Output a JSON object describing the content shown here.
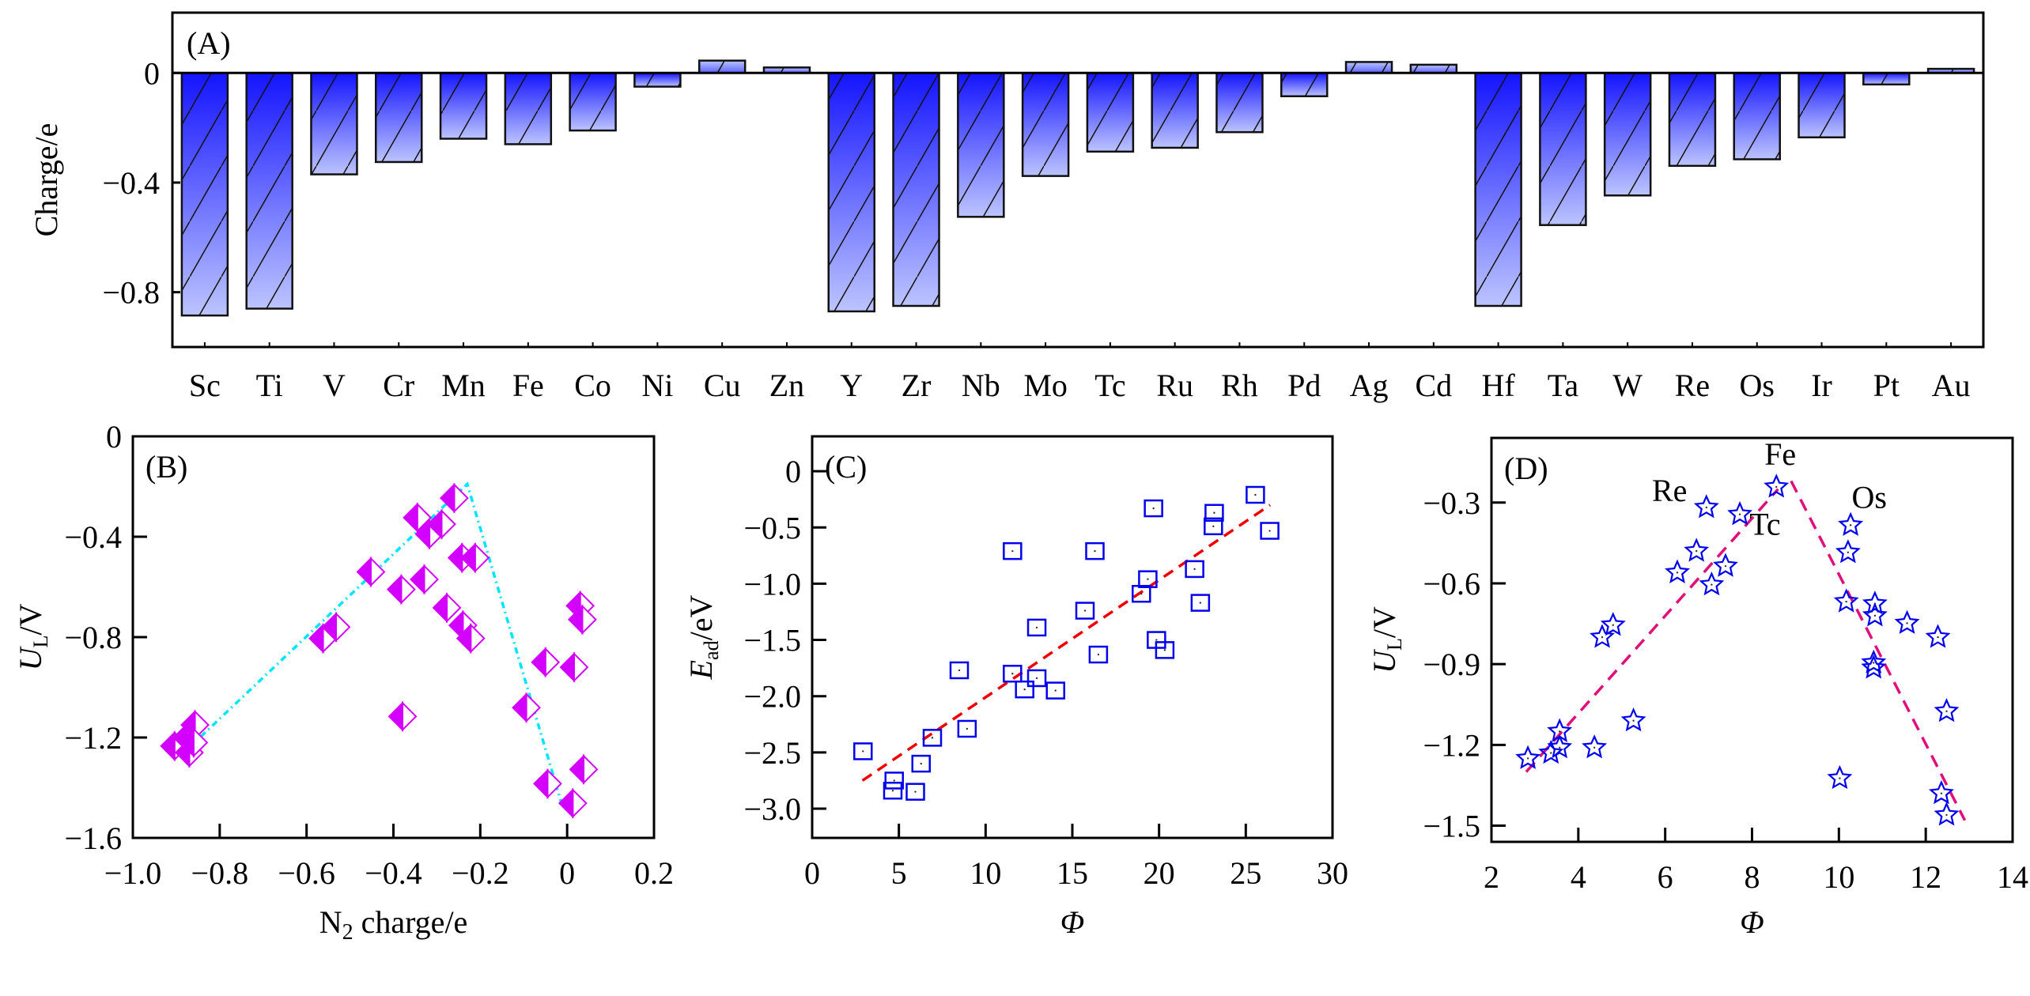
{
  "colors": {
    "bar_top": "#1414ff",
    "bar_bottom": "#bcc4ff",
    "diamond": "#d400ff",
    "fit_b": "#00e5ff",
    "square": "#0000ee",
    "fit_c": "#ee0000",
    "star": "#0000ee",
    "fit_d": "#e0107a"
  },
  "chart_data": [
    {
      "panel": "(A)",
      "type": "bar",
      "ylabel": "Charge/e",
      "xlabel": "",
      "ylim": [
        -1.0,
        0.22
      ],
      "yticks": [
        0,
        -0.4,
        -0.8
      ],
      "ytick_labels": [
        "0",
        "−0.4",
        "−0.8"
      ],
      "categories": [
        "Sc",
        "Ti",
        "V",
        "Cr",
        "Mn",
        "Fe",
        "Co",
        "Ni",
        "Cu",
        "Zn",
        "Y",
        "Zr",
        "Nb",
        "Mo",
        "Tc",
        "Ru",
        "Rh",
        "Pd",
        "Ag",
        "Cd",
        "Hf",
        "Ta",
        "W",
        "Re",
        "Os",
        "Ir",
        "Pt",
        "Au"
      ],
      "values": [
        -0.885,
        -0.86,
        -0.37,
        -0.325,
        -0.24,
        -0.26,
        -0.21,
        -0.05,
        0.045,
        0.02,
        -0.87,
        -0.85,
        -0.525,
        -0.376,
        -0.287,
        -0.273,
        -0.216,
        -0.085,
        0.04,
        0.03,
        -0.85,
        -0.555,
        -0.447,
        -0.339,
        -0.315,
        -0.235,
        -0.042,
        0.015
      ]
    },
    {
      "panel": "(B)",
      "type": "scatter",
      "ylabel_main": "U",
      "ylabel_sub": "L",
      "ylabel_tail": "/V",
      "xlabel_main": "N",
      "xlabel_sub": "2",
      "xlabel_tail": " charge/e",
      "xlim": [
        -1.0,
        0.2
      ],
      "ylim": [
        -1.6,
        0
      ],
      "xticks": [
        -1.0,
        -0.8,
        -0.6,
        -0.4,
        -0.2,
        0,
        0.2
      ],
      "xtick_labels": [
        "−1.0",
        "−0.8",
        "−0.6",
        "−0.4",
        "−0.2",
        "0",
        "0.2"
      ],
      "yticks": [
        0,
        -0.4,
        -0.8,
        -1.2,
        -1.6
      ],
      "ytick_labels": [
        "0",
        "−0.4",
        "−0.8",
        "−1.2",
        "−1.6"
      ],
      "x": [
        -0.904,
        -0.875,
        -0.87,
        -0.857,
        -0.86,
        -0.562,
        -0.532,
        -0.452,
        -0.382,
        -0.379,
        -0.345,
        -0.329,
        -0.317,
        -0.289,
        -0.277,
        -0.26,
        -0.242,
        -0.24,
        -0.212,
        -0.222,
        -0.094,
        -0.05,
        -0.045,
        0.013,
        0.016,
        0.03,
        0.035,
        0.038
      ],
      "y": [
        -1.234,
        -1.2,
        -1.26,
        -1.15,
        -1.22,
        -0.805,
        -0.76,
        -0.54,
        -0.61,
        -1.116,
        -0.324,
        -0.57,
        -0.39,
        -0.35,
        -0.683,
        -0.246,
        -0.484,
        -0.753,
        -0.484,
        -0.805,
        -1.081,
        -0.9,
        -1.384,
        -1.462,
        -0.92,
        -0.675,
        -0.73,
        -1.327
      ],
      "fit_line": {
        "x": [
          -0.87,
          -0.23,
          -0.01
        ],
        "y": [
          -1.24,
          -0.19,
          -1.48
        ]
      }
    },
    {
      "panel": "(C)",
      "type": "scatter",
      "ylabel_main": "E",
      "ylabel_sub": "ad",
      "ylabel_tail": "/eV",
      "xlabel": "Φ",
      "xlim": [
        0,
        30
      ],
      "ylim": [
        -3.26,
        0.31
      ],
      "xticks": [
        0,
        5,
        10,
        15,
        20,
        25,
        30
      ],
      "xtick_labels": [
        "0",
        "5",
        "10",
        "15",
        "20",
        "25",
        "30"
      ],
      "yticks": [
        0,
        -0.5,
        -1.0,
        -1.5,
        -2.0,
        -2.5,
        -3.0
      ],
      "ytick_labels": [
        "0",
        "−0.5",
        "−1.0",
        "−1.5",
        "−2.0",
        "−2.5",
        "−3.0"
      ],
      "x": [
        2.93,
        4.73,
        4.65,
        5.95,
        6.28,
        6.93,
        8.48,
        8.93,
        11.55,
        11.55,
        12.25,
        12.95,
        12.95,
        14.03,
        15.73,
        16.3,
        16.5,
        18.98,
        19.35,
        19.68,
        19.85,
        20.33,
        22.05,
        22.38,
        23.13,
        23.18,
        25.55,
        26.38
      ],
      "y": [
        -2.49,
        -2.75,
        -2.84,
        -2.85,
        -2.6,
        -2.37,
        -1.77,
        -2.29,
        -0.71,
        -1.8,
        -1.94,
        -1.39,
        -1.84,
        -1.95,
        -1.24,
        -0.71,
        -1.63,
        -1.09,
        -0.96,
        -0.33,
        -1.5,
        -1.59,
        -0.87,
        -1.17,
        -0.49,
        -0.37,
        -0.21,
        -0.53
      ],
      "fit_line": {
        "x": [
          2.9,
          26.4
        ],
        "y": [
          -2.75,
          -0.3
        ]
      }
    },
    {
      "panel": "(D)",
      "type": "scatter",
      "ylabel_main": "U",
      "ylabel_sub": "L",
      "ylabel_tail": "/V",
      "xlabel": "Φ",
      "xlim": [
        2,
        14
      ],
      "ylim": [
        -1.56,
        -0.06
      ],
      "xticks": [
        2,
        4,
        6,
        8,
        10,
        12,
        14
      ],
      "xtick_labels": [
        "2",
        "4",
        "6",
        "8",
        "10",
        "12",
        "14"
      ],
      "yticks": [
        -0.3,
        -0.6,
        -0.9,
        -1.2,
        -1.5
      ],
      "ytick_labels": [
        "−0.3",
        "−0.6",
        "−0.9",
        "−1.2",
        "−1.5"
      ],
      "x": [
        2.84,
        3.37,
        3.57,
        3.57,
        4.37,
        4.55,
        4.8,
        5.27,
        6.28,
        6.72,
        6.95,
        7.07,
        7.39,
        7.72,
        8.56,
        10.27,
        10.21,
        10.17,
        10.83,
        10.83,
        10.8,
        10.8,
        11.57,
        12.28,
        12.48,
        10.02,
        12.36,
        12.48
      ],
      "y": [
        -1.25,
        -1.23,
        -1.21,
        -1.15,
        -1.21,
        -0.8,
        -0.755,
        -1.11,
        -0.56,
        -0.48,
        -0.318,
        -0.605,
        -0.536,
        -0.344,
        -0.242,
        -0.384,
        -0.485,
        -0.668,
        -0.676,
        -0.72,
        -0.895,
        -0.914,
        -0.748,
        -0.8,
        -1.075,
        -1.324,
        -1.38,
        -1.46
      ],
      "fit_lines": [
        {
          "x": [
            2.8,
            8.6
          ],
          "y": [
            -1.3,
            -0.25
          ]
        },
        {
          "x": [
            8.9,
            12.9
          ],
          "y": [
            -0.22,
            -1.48
          ]
        }
      ],
      "annotations": [
        {
          "text": "Fe",
          "x": 8.65,
          "y": -0.16
        },
        {
          "text": "Re",
          "x": 6.1,
          "y": -0.295
        },
        {
          "text": "Tc",
          "x": 8.3,
          "y": -0.42
        },
        {
          "text": "Os",
          "x": 10.7,
          "y": -0.32
        }
      ]
    }
  ]
}
